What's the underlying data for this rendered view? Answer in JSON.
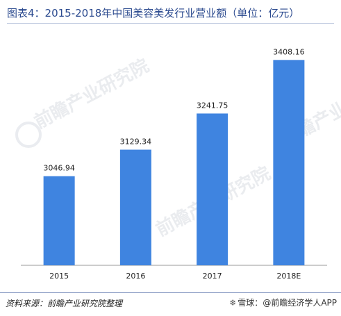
{
  "title": "图表4：2015-2018年中国美容美发行业营业额（单位：亿元）",
  "source": "资料来源：前瞻产业研究院整理",
  "credit_snowball": "雪球：",
  "credit_author": "@前瞻经济学人APP",
  "watermark_text": "前瞻产业研究院",
  "colors": {
    "bar": "#3f84e0",
    "axis": "#9a9a9a",
    "title": "#2b4a8f"
  },
  "chart_data": {
    "type": "bar",
    "categories": [
      "2015",
      "2016",
      "2017",
      "2018E"
    ],
    "values": [
      3046.94,
      3129.34,
      3241.75,
      3408.16
    ],
    "value_labels": [
      "3046.94",
      "3129.34",
      "3241.75",
      "3408.16"
    ],
    "title": "图表4：2015-2018年中国美容美发行业营业额（单位：亿元）",
    "xlabel": "",
    "ylabel": "",
    "grid": false
  }
}
